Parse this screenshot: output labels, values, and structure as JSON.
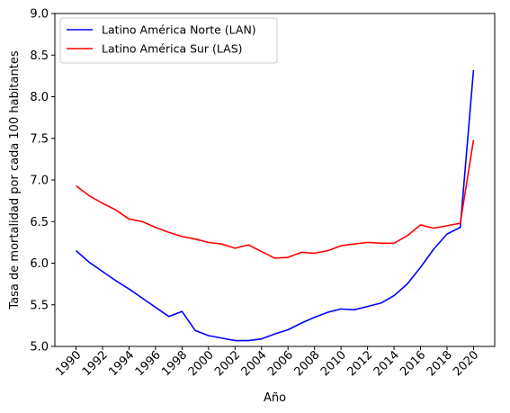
{
  "chart_data": {
    "type": "line",
    "title": "",
    "xlabel": "Año",
    "ylabel": "Tasa de mortalidad por cada 100 habitantes",
    "xlim": [
      1988.4,
      2021.6
    ],
    "ylim": [
      5.0,
      9.0
    ],
    "x_ticks": [
      1990,
      1992,
      1994,
      1996,
      1998,
      2000,
      2002,
      2004,
      2006,
      2008,
      2010,
      2012,
      2014,
      2016,
      2018,
      2020
    ],
    "x_tick_labels": [
      "1990",
      "1992",
      "1994",
      "1996",
      "1998",
      "2000",
      "2002",
      "2004",
      "2006",
      "2008",
      "2010",
      "2012",
      "2014",
      "2016",
      "2018",
      "2020"
    ],
    "y_ticks": [
      5.0,
      5.5,
      6.0,
      6.5,
      7.0,
      7.5,
      8.0,
      8.5,
      9.0
    ],
    "y_tick_labels": [
      "5.0",
      "5.5",
      "6.0",
      "6.5",
      "7.0",
      "7.5",
      "8.0",
      "8.5",
      "9.0"
    ],
    "grid": false,
    "legend_position": "top-left",
    "x": [
      1990,
      1991,
      1992,
      1993,
      1994,
      1995,
      1996,
      1997,
      1998,
      1999,
      2000,
      2001,
      2002,
      2003,
      2004,
      2005,
      2006,
      2007,
      2008,
      2009,
      2010,
      2011,
      2012,
      2013,
      2014,
      2015,
      2016,
      2017,
      2018,
      2019,
      2020
    ],
    "series": [
      {
        "name": "Latino América Norte (LAN)",
        "color": "#0000ff",
        "values": [
          6.15,
          6.01,
          5.9,
          5.79,
          5.69,
          5.58,
          5.47,
          5.36,
          5.42,
          5.19,
          5.13,
          5.1,
          5.07,
          5.07,
          5.09,
          5.15,
          5.2,
          5.28,
          5.35,
          5.41,
          5.45,
          5.44,
          5.48,
          5.52,
          5.61,
          5.75,
          5.95,
          6.17,
          6.35,
          6.43,
          8.32
        ]
      },
      {
        "name": "Latino América Sur (LAS)",
        "color": "#ff0000",
        "values": [
          6.93,
          6.81,
          6.72,
          6.64,
          6.53,
          6.5,
          6.43,
          6.37,
          6.32,
          6.29,
          6.25,
          6.23,
          6.18,
          6.22,
          6.14,
          6.06,
          6.07,
          6.13,
          6.12,
          6.15,
          6.21,
          6.23,
          6.25,
          6.24,
          6.24,
          6.33,
          6.46,
          6.42,
          6.45,
          6.48,
          7.48
        ]
      }
    ]
  }
}
